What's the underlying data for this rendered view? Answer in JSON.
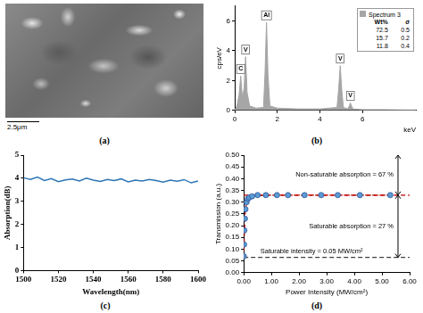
{
  "sem_image": {
    "panel_label": "(a)",
    "scale_bar": "2.5μm"
  },
  "chart_data": [
    {
      "panel_label": "(b)",
      "type": "area",
      "x_label": "keV",
      "y_label": "cps/eV",
      "series": [
        {
          "name": "Spectrum 3",
          "color": "#a6a6a6",
          "x": [
            0,
            0.1,
            0.2,
            0.28,
            0.36,
            0.44,
            0.51,
            0.58,
            0.7,
            1.0,
            1.35,
            1.42,
            1.49,
            1.56,
            1.65,
            2.0,
            3.0,
            4.0,
            4.8,
            4.88,
            4.95,
            5.02,
            5.1,
            5.3,
            5.38,
            5.43,
            5.48,
            5.55,
            6.0,
            7.0,
            8.0,
            8.5
          ],
          "values": [
            0,
            0.3,
            1.0,
            2.3,
            0.8,
            1.5,
            3.6,
            1.2,
            0.3,
            0.15,
            0.2,
            2.5,
            5.9,
            2.4,
            0.3,
            0.15,
            0.1,
            0.1,
            0.2,
            1.5,
            3.0,
            1.4,
            0.2,
            0.1,
            0.3,
            0.5,
            0.3,
            0.1,
            0.05,
            0.05,
            0.03,
            0.03
          ]
        }
      ],
      "peak_labels": [
        {
          "label": "C",
          "x": 0.28
        },
        {
          "label": "V",
          "x": 0.51
        },
        {
          "label": "Al",
          "x": 1.49
        },
        {
          "label": "V",
          "x": 4.95
        },
        {
          "label": "V",
          "x": 5.43
        }
      ],
      "inset_table": {
        "columns": [
          "Wt%",
          "σ"
        ],
        "rows": [
          [
            72.5,
            0.5
          ],
          [
            15.7,
            0.2
          ],
          [
            11.8,
            0.4
          ]
        ]
      },
      "legend": "upper right",
      "xlim": [
        0,
        8.5
      ],
      "xticks": [
        0,
        2,
        4,
        6
      ],
      "ylim": [
        0,
        7
      ],
      "yticks": [
        0,
        2,
        4,
        6
      ],
      "grid": false
    },
    {
      "panel_label": "(c)",
      "type": "line",
      "x_label": "Wavelength(nm)",
      "y_label": "Absorption(dB)",
      "series": [
        {
          "color": "#2e75b6",
          "x": [
            1500,
            1504,
            1508,
            1512,
            1516,
            1520,
            1524,
            1528,
            1532,
            1536,
            1540,
            1544,
            1548,
            1552,
            1556,
            1560,
            1564,
            1568,
            1572,
            1576,
            1580,
            1584,
            1588,
            1592,
            1596,
            1600
          ],
          "values": [
            4.02,
            3.95,
            4.05,
            3.9,
            3.98,
            3.85,
            3.93,
            3.97,
            3.88,
            4.0,
            3.92,
            3.86,
            3.95,
            3.9,
            3.97,
            3.84,
            3.92,
            3.88,
            3.95,
            3.9,
            3.83,
            3.92,
            3.87,
            3.94,
            3.8,
            3.88
          ]
        }
      ],
      "xlim": [
        1500,
        1600
      ],
      "xticks": [
        1500,
        1520,
        1540,
        1560,
        1580,
        1600
      ],
      "ylim": [
        0,
        5
      ],
      "yticks": [
        0,
        1,
        2,
        3,
        4,
        5
      ],
      "grid": false
    },
    {
      "panel_label": "(d)",
      "type": "scatter",
      "x_label": "Power Intensity (MW/cm²)",
      "y_label": "Transmission (a.u.)",
      "series": [
        {
          "type": "scatter",
          "marker": "circle",
          "color": "#5b9bd5",
          "x": [
            0,
            0.01,
            0.02,
            0.04,
            0.06,
            0.1,
            0.15,
            0.2,
            0.3,
            0.5,
            0.8,
            1.2,
            1.6,
            2.2,
            2.8,
            3.4,
            4.2,
            5.3
          ],
          "values": [
            0.07,
            0.12,
            0.18,
            0.23,
            0.27,
            0.3,
            0.315,
            0.32,
            0.325,
            0.33,
            0.33,
            0.33,
            0.33,
            0.33,
            0.33,
            0.33,
            0.33,
            0.33
          ]
        },
        {
          "type": "line",
          "line_style": "dashed",
          "color": "#c00000",
          "x": [
            0,
            0.02,
            0.05,
            0.1,
            0.2,
            0.4,
            1,
            2,
            3,
            4,
            5,
            5.5
          ],
          "values": [
            0.065,
            0.16,
            0.25,
            0.3,
            0.32,
            0.328,
            0.33,
            0.33,
            0.33,
            0.33,
            0.33,
            0.33
          ]
        }
      ],
      "reference_lines": [
        {
          "value": 0.33,
          "color": "#c00000",
          "line_style": "dashed"
        },
        {
          "value": 0.065,
          "color": "#404040",
          "line_style": "dashed"
        }
      ],
      "annotations": [
        "Non-saturable absorption = 67 %",
        "Saturable absorption = 27 %",
        "Saturable intensity = 0.05 MW/cm²"
      ],
      "xlim": [
        0,
        6
      ],
      "xticks": [
        {
          "value": 0,
          "label": "0.00"
        },
        {
          "value": 1,
          "label": "1.00"
        },
        {
          "value": 2,
          "label": "2.00"
        },
        {
          "value": 3,
          "label": "3.00"
        },
        {
          "value": 4,
          "label": "4.00"
        },
        {
          "value": 5,
          "label": "5.00"
        },
        {
          "value": 6,
          "label": "6.00"
        }
      ],
      "ylim": [
        0,
        0.5
      ],
      "yticks": [
        {
          "value": 0,
          "label": "0.00"
        },
        0.05,
        {
          "value": 0.1,
          "label": "0.10"
        },
        0.15,
        {
          "value": 0.2,
          "label": "0.20"
        },
        0.25,
        {
          "value": 0.3,
          "label": "0.30"
        },
        0.35,
        {
          "value": 0.4,
          "label": "0.40"
        },
        0.45,
        {
          "value": 0.5,
          "label": "0.50"
        }
      ],
      "grid": false
    }
  ]
}
